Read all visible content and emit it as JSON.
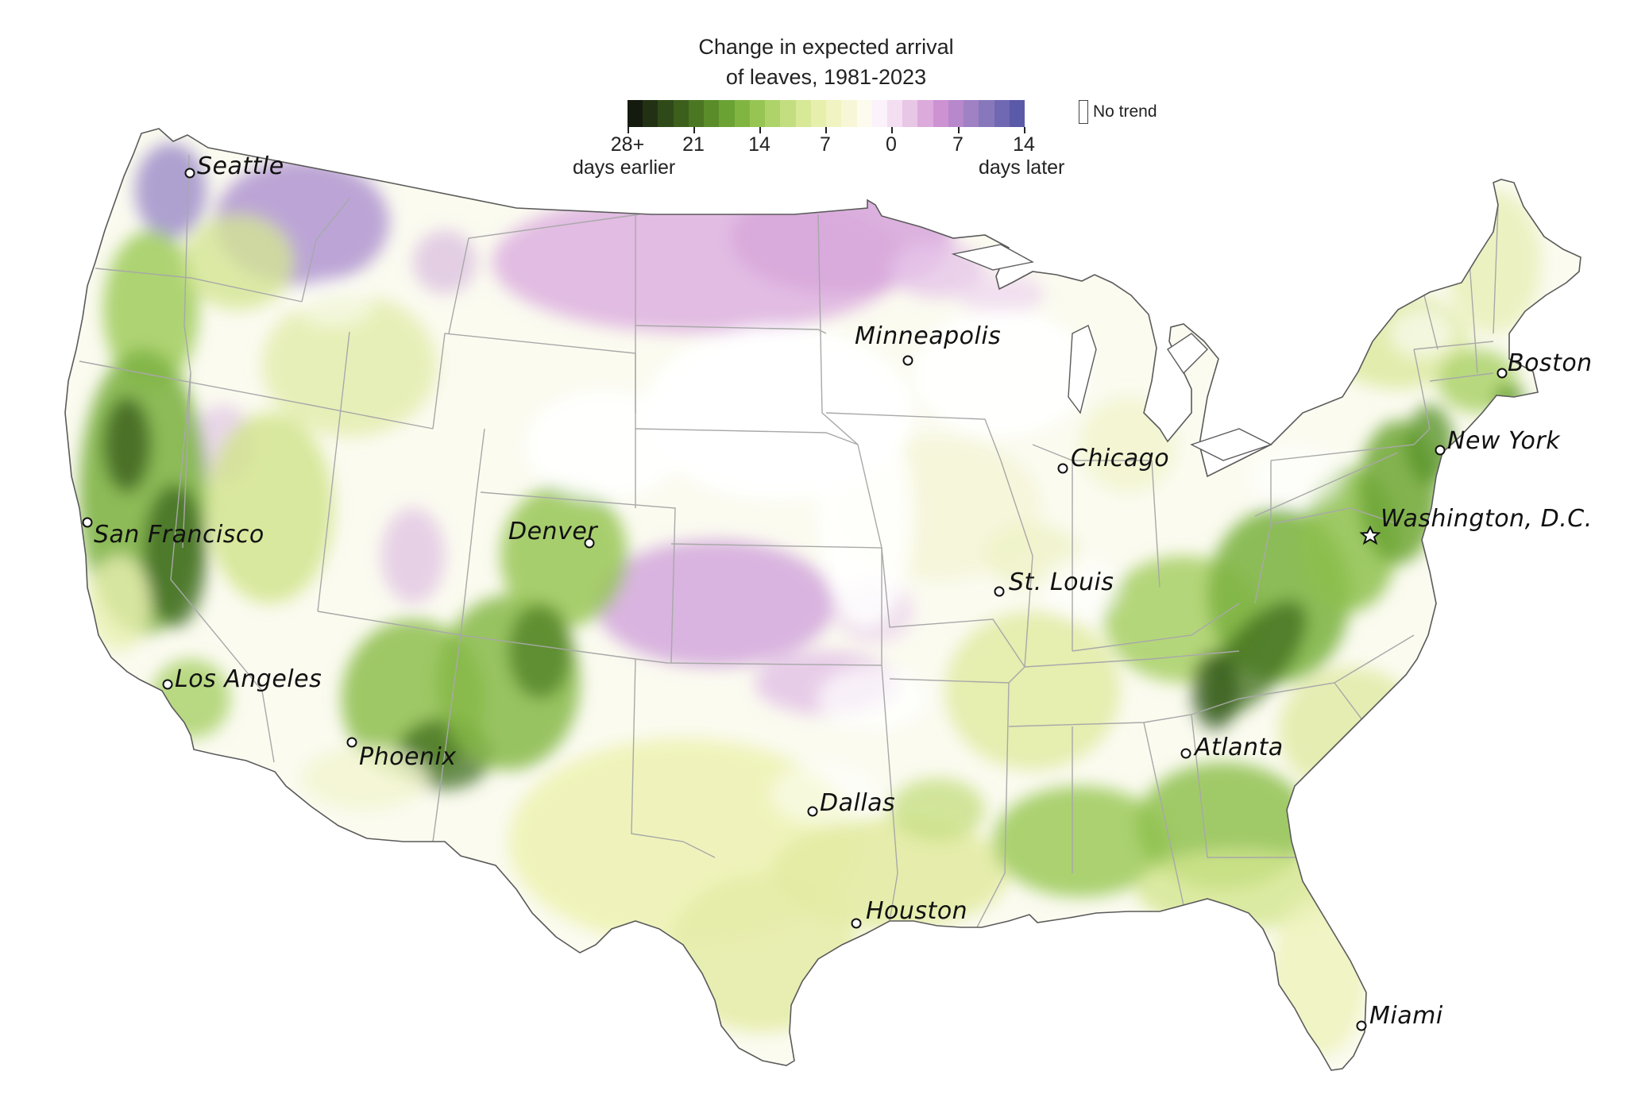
{
  "legend": {
    "title_line1": "Change in expected arrival",
    "title_line2": "of leaves, 1981-2023",
    "ticks": [
      "28+",
      "21",
      "14",
      "7",
      "0",
      "7",
      "14"
    ],
    "left_caption": "days earlier",
    "right_caption": "days later",
    "no_trend_label": "No trend",
    "colors": [
      "#141b0e",
      "#223114",
      "#2f4a18",
      "#3d5f1c",
      "#4b7622",
      "#5a8d2a",
      "#6ba234",
      "#80b541",
      "#97c553",
      "#add369",
      "#c3de80",
      "#d7e896",
      "#e7efac",
      "#f1f3c2",
      "#f7f7d8",
      "#fcfbee",
      "#fbf2fb",
      "#f3dff1",
      "#e8c6e6",
      "#dcabdc",
      "#cc92d2",
      "#b888cc",
      "#a081c4",
      "#8778bc",
      "#7168b3",
      "#5b5aa8"
    ]
  },
  "cities": [
    {
      "name": "Seattle",
      "marker": "circle"
    },
    {
      "name": "Minneapolis",
      "marker": "circle"
    },
    {
      "name": "Boston",
      "marker": "circle"
    },
    {
      "name": "Chicago",
      "marker": "circle"
    },
    {
      "name": "New York",
      "marker": "circle"
    },
    {
      "name": "Washington, D.C.",
      "marker": "star"
    },
    {
      "name": "San Francisco",
      "marker": "circle"
    },
    {
      "name": "Denver",
      "marker": "circle"
    },
    {
      "name": "St. Louis",
      "marker": "circle"
    },
    {
      "name": "Los Angeles",
      "marker": "circle"
    },
    {
      "name": "Phoenix",
      "marker": "circle"
    },
    {
      "name": "Atlanta",
      "marker": "circle"
    },
    {
      "name": "Dallas",
      "marker": "circle"
    },
    {
      "name": "Houston",
      "marker": "circle"
    },
    {
      "name": "Miami",
      "marker": "circle"
    }
  ]
}
